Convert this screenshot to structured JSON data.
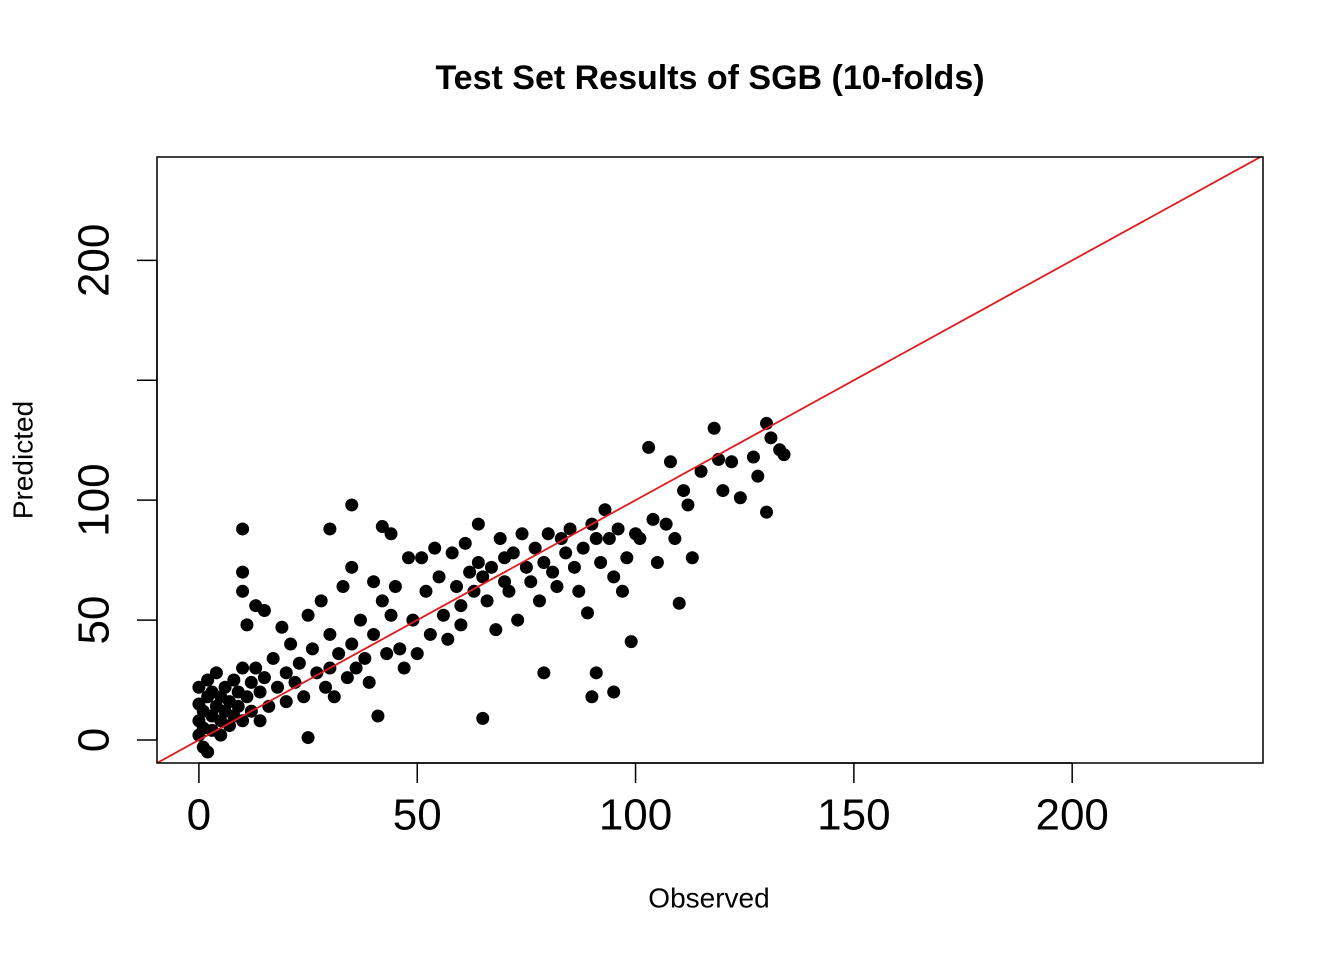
{
  "chart_data": {
    "type": "scatter",
    "title": "Test Set Results of SGB (10-folds)",
    "x_label": "Observed",
    "y_label": "Predicted",
    "xlim": [
      -9.6,
      243.7
    ],
    "ylim": [
      -9.6,
      243.1
    ],
    "xticks": [
      0,
      50,
      100,
      150,
      200
    ],
    "yticks": [
      0,
      50,
      100,
      {
        "value": 150,
        "label": null
      },
      200
    ],
    "color": "#000000",
    "reference_line": {
      "slope": 1,
      "intercept": 0,
      "color": "#e31a1c"
    },
    "x": [
      0,
      0,
      0,
      0,
      1,
      1,
      1,
      2,
      2,
      2,
      3,
      3,
      3,
      4,
      4,
      5,
      5,
      5,
      6,
      6,
      7,
      7,
      8,
      8,
      9,
      9,
      10,
      10,
      10,
      10,
      10,
      11,
      11,
      12,
      12,
      13,
      13,
      14,
      14,
      15,
      15,
      16,
      17,
      18,
      19,
      20,
      20,
      21,
      22,
      23,
      24,
      25,
      25,
      26,
      27,
      28,
      29,
      30,
      30,
      30,
      31,
      32,
      33,
      34,
      35,
      35,
      35,
      36,
      37,
      38,
      39,
      40,
      40,
      41,
      42,
      42,
      43,
      44,
      44,
      45,
      46,
      47,
      48,
      49,
      50,
      51,
      52,
      53,
      54,
      55,
      56,
      57,
      58,
      59,
      60,
      60,
      61,
      62,
      63,
      64,
      64,
      65,
      65,
      66,
      67,
      68,
      69,
      70,
      70,
      71,
      72,
      73,
      74,
      75,
      76,
      77,
      78,
      79,
      79,
      80,
      81,
      82,
      83,
      84,
      85,
      86,
      87,
      88,
      89,
      90,
      90,
      91,
      91,
      92,
      93,
      94,
      95,
      95,
      96,
      97,
      98,
      99,
      100,
      101,
      103,
      104,
      105,
      107,
      108,
      109,
      110,
      111,
      112,
      113,
      115,
      118,
      119,
      120,
      122,
      124,
      127,
      128,
      130,
      130,
      131,
      133,
      134
    ],
    "values": [
      2,
      8,
      15,
      22,
      5,
      12,
      -3,
      18,
      25,
      -5,
      10,
      4,
      20,
      14,
      28,
      8,
      18,
      2,
      22,
      12,
      16,
      6,
      25,
      10,
      20,
      14,
      88,
      70,
      62,
      30,
      8,
      48,
      18,
      24,
      12,
      56,
      30,
      20,
      8,
      54,
      26,
      14,
      34,
      22,
      47,
      28,
      16,
      40,
      24,
      32,
      18,
      52,
      1,
      38,
      28,
      58,
      22,
      88,
      44,
      30,
      18,
      36,
      64,
      26,
      98,
      72,
      40,
      30,
      50,
      34,
      24,
      66,
      44,
      10,
      89,
      58,
      36,
      86,
      52,
      64,
      38,
      30,
      76,
      50,
      36,
      76,
      62,
      44,
      80,
      68,
      52,
      42,
      78,
      64,
      56,
      48,
      82,
      70,
      62,
      90,
      74,
      9,
      68,
      58,
      72,
      46,
      84,
      76,
      66,
      62,
      78,
      50,
      86,
      72,
      66,
      80,
      58,
      28,
      74,
      86,
      70,
      64,
      84,
      78,
      88,
      72,
      62,
      80,
      53,
      90,
      18,
      28,
      84,
      74,
      96,
      84,
      20,
      68,
      88,
      62,
      76,
      41,
      86,
      84,
      122,
      92,
      74,
      90,
      116,
      84,
      57,
      104,
      98,
      76,
      112,
      130,
      117,
      104,
      116,
      101,
      118,
      110,
      95,
      132,
      126,
      121,
      119
    ]
  }
}
